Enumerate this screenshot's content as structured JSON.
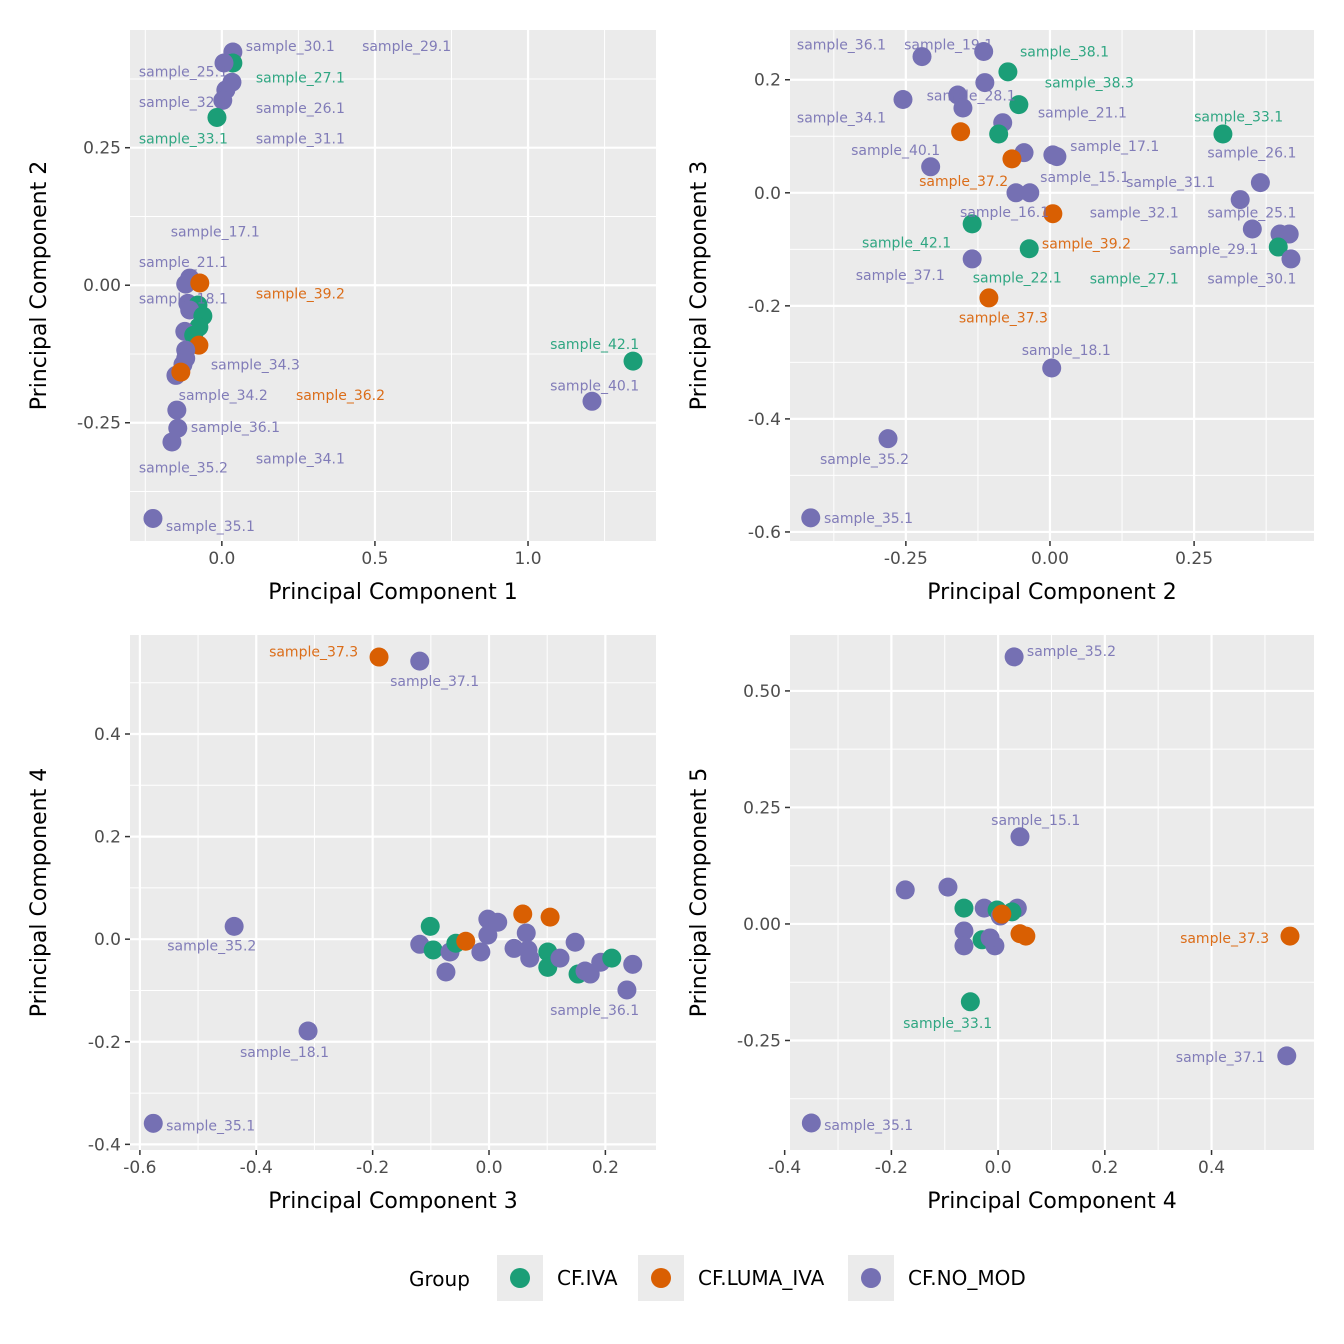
{
  "colors": {
    "CF.IVA": "#1b9e77",
    "CF.LUMA_IVA": "#d95f02",
    "CF.NO_MOD": "#7570b3",
    "panel_bg": "#ebebeb",
    "grid": "#ffffff"
  },
  "legend": {
    "title": "Group",
    "placement": "bottom",
    "entries": [
      "CF.IVA",
      "CF.LUMA_IVA",
      "CF.NO_MOD"
    ]
  },
  "chart_data": [
    {
      "type": "scatter",
      "xlabel": "Principal Component 1",
      "ylabel": "Principal Component 2",
      "xlim": [
        -0.3,
        1.418
      ],
      "ylim": [
        -0.465,
        0.464
      ],
      "xticks": [
        0.0,
        0.5,
        1.0
      ],
      "xtick_labels": [
        "0.0",
        "0.5",
        "1.0"
      ],
      "yticks": [
        -0.25,
        0.0,
        0.25
      ],
      "ytick_labels": [
        "-0.25",
        "0.00",
        "0.25"
      ],
      "grid": true,
      "points": [
        [
          0.036,
          0.424,
          "CF.NO_MOD"
        ],
        [
          0.036,
          0.404,
          "CF.IVA"
        ],
        [
          0.007,
          0.404,
          "CF.NO_MOD"
        ],
        [
          0.033,
          0.369,
          "CF.NO_MOD"
        ],
        [
          0.013,
          0.355,
          "CF.NO_MOD"
        ],
        [
          0.003,
          0.336,
          "CF.NO_MOD"
        ],
        [
          -0.016,
          0.305,
          "CF.IVA"
        ],
        [
          -0.105,
          0.013,
          "CF.NO_MOD"
        ],
        [
          -0.118,
          0.002,
          "CF.NO_MOD"
        ],
        [
          -0.072,
          0.004,
          "CF.LUMA_IVA"
        ],
        [
          -0.111,
          -0.033,
          "CF.NO_MOD"
        ],
        [
          -0.078,
          -0.036,
          "CF.IVA"
        ],
        [
          -0.105,
          -0.045,
          "CF.NO_MOD"
        ],
        [
          -0.062,
          -0.056,
          "CF.IVA"
        ],
        [
          -0.075,
          -0.076,
          "CF.IVA"
        ],
        [
          -0.121,
          -0.084,
          "CF.NO_MOD"
        ],
        [
          -0.092,
          -0.091,
          "CF.IVA"
        ],
        [
          -0.075,
          -0.109,
          "CF.LUMA_IVA"
        ],
        [
          -0.118,
          -0.118,
          "CF.NO_MOD"
        ],
        [
          -0.118,
          -0.133,
          "CF.NO_MOD"
        ],
        [
          -0.127,
          -0.144,
          "CF.NO_MOD"
        ],
        [
          -0.15,
          -0.164,
          "CF.NO_MOD"
        ],
        [
          -0.134,
          -0.158,
          "CF.LUMA_IVA"
        ],
        [
          -0.147,
          -0.227,
          "CF.NO_MOD"
        ],
        [
          -0.144,
          -0.26,
          "CF.NO_MOD"
        ],
        [
          -0.163,
          -0.285,
          "CF.NO_MOD"
        ],
        [
          -0.225,
          -0.424,
          "CF.NO_MOD"
        ],
        [
          1.343,
          -0.138,
          "CF.IVA"
        ],
        [
          1.209,
          -0.211,
          "CF.NO_MOD"
        ]
      ],
      "labels": [
        [
          "sample_30.1",
          0.078,
          0.435,
          "CF.NO_MOD"
        ],
        [
          "sample_29.1",
          0.458,
          0.435,
          "CF.NO_MOD"
        ],
        [
          "sample_25.1",
          -0.271,
          0.389,
          "CF.NO_MOD"
        ],
        [
          "sample_27.1",
          0.111,
          0.378,
          "CF.IVA"
        ],
        [
          "sample_32.1",
          -0.271,
          0.333,
          "CF.NO_MOD"
        ],
        [
          "sample_26.1",
          0.111,
          0.322,
          "CF.NO_MOD"
        ],
        [
          "sample_33.1",
          -0.271,
          0.267,
          "CF.IVA"
        ],
        [
          "sample_31.1",
          0.111,
          0.267,
          "CF.NO_MOD"
        ],
        [
          "sample_17.1",
          -0.167,
          0.098,
          "CF.NO_MOD"
        ],
        [
          "sample_21.1",
          -0.271,
          0.042,
          "CF.NO_MOD"
        ],
        [
          "sample_39.2",
          0.111,
          -0.015,
          "CF.LUMA_IVA"
        ],
        [
          "sample_18.1",
          -0.271,
          -0.024,
          "CF.NO_MOD"
        ],
        [
          "sample_34.3",
          -0.036,
          -0.144,
          "CF.NO_MOD"
        ],
        [
          "sample_34.2",
          -0.141,
          -0.2,
          "CF.NO_MOD"
        ],
        [
          "sample_36.2",
          0.242,
          -0.2,
          "CF.LUMA_IVA"
        ],
        [
          "sample_36.1",
          -0.101,
          -0.258,
          "CF.NO_MOD"
        ],
        [
          "sample_34.1",
          0.111,
          -0.315,
          "CF.NO_MOD"
        ],
        [
          "sample_35.2",
          -0.271,
          -0.331,
          "CF.NO_MOD"
        ],
        [
          "sample_35.1",
          -0.183,
          -0.438,
          "CF.NO_MOD"
        ],
        [
          "sample_42.1",
          1.072,
          -0.107,
          "CF.IVA"
        ],
        [
          "sample_40.1",
          1.072,
          -0.182,
          "CF.NO_MOD"
        ]
      ]
    },
    {
      "type": "scatter",
      "xlabel": "Principal Component 2",
      "ylabel": "Principal Component 3",
      "xlim": [
        -0.451,
        0.458
      ],
      "ylim": [
        -0.616,
        0.288
      ],
      "xticks": [
        -0.25,
        0.0,
        0.25
      ],
      "xtick_labels": [
        "-0.25",
        "0.00",
        "0.25"
      ],
      "yticks": [
        -0.6,
        -0.4,
        -0.2,
        0.0,
        0.2
      ],
      "ytick_labels": [
        "-0.6",
        "-0.4",
        "-0.2",
        "0.0",
        "0.2"
      ],
      "grid": true,
      "points": [
        [
          -0.222,
          0.241,
          "CF.NO_MOD"
        ],
        [
          -0.115,
          0.25,
          "CF.NO_MOD"
        ],
        [
          -0.073,
          0.214,
          "CF.IVA"
        ],
        [
          -0.113,
          0.195,
          "CF.NO_MOD"
        ],
        [
          -0.255,
          0.165,
          "CF.NO_MOD"
        ],
        [
          -0.16,
          0.173,
          "CF.NO_MOD"
        ],
        [
          -0.151,
          0.15,
          "CF.NO_MOD"
        ],
        [
          -0.054,
          0.156,
          "CF.IVA"
        ],
        [
          -0.082,
          0.124,
          "CF.NO_MOD"
        ],
        [
          -0.155,
          0.108,
          "CF.LUMA_IVA"
        ],
        [
          -0.089,
          0.104,
          "CF.IVA"
        ],
        [
          -0.045,
          0.071,
          "CF.NO_MOD"
        ],
        [
          -0.066,
          0.06,
          "CF.LUMA_IVA"
        ],
        [
          -0.207,
          0.046,
          "CF.NO_MOD"
        ],
        [
          0.005,
          0.067,
          "CF.NO_MOD"
        ],
        [
          0.012,
          0.064,
          "CF.NO_MOD"
        ],
        [
          -0.059,
          0.0,
          "CF.NO_MOD"
        ],
        [
          -0.035,
          0.0,
          "CF.NO_MOD"
        ],
        [
          0.005,
          -0.037,
          "CF.LUMA_IVA"
        ],
        [
          -0.135,
          -0.055,
          "CF.IVA"
        ],
        [
          -0.036,
          -0.099,
          "CF.IVA"
        ],
        [
          -0.135,
          -0.117,
          "CF.NO_MOD"
        ],
        [
          -0.106,
          -0.186,
          "CF.LUMA_IVA"
        ],
        [
          0.003,
          -0.31,
          "CF.NO_MOD"
        ],
        [
          -0.281,
          -0.435,
          "CF.NO_MOD"
        ],
        [
          -0.415,
          -0.575,
          "CF.NO_MOD"
        ],
        [
          0.3,
          0.104,
          "CF.IVA"
        ],
        [
          0.365,
          0.018,
          "CF.NO_MOD"
        ],
        [
          0.33,
          -0.012,
          "CF.NO_MOD"
        ],
        [
          0.351,
          -0.064,
          "CF.NO_MOD"
        ],
        [
          0.399,
          -0.073,
          "CF.NO_MOD"
        ],
        [
          0.415,
          -0.073,
          "CF.NO_MOD"
        ],
        [
          0.396,
          -0.096,
          "CF.IVA"
        ],
        [
          0.418,
          -0.117,
          "CF.NO_MOD"
        ]
      ],
      "labels": [
        [
          "sample_36.1",
          -0.439,
          0.262,
          "CF.NO_MOD"
        ],
        [
          "sample_19.1",
          -0.253,
          0.262,
          "CF.NO_MOD"
        ],
        [
          "sample_38.1",
          -0.052,
          0.25,
          "CF.IVA"
        ],
        [
          "sample_38.3",
          -0.009,
          0.195,
          "CF.IVA"
        ],
        [
          "sample_28.1",
          -0.214,
          0.172,
          "CF.NO_MOD"
        ],
        [
          "sample_34.1",
          -0.439,
          0.133,
          "CF.NO_MOD"
        ],
        [
          "sample_21.1",
          -0.021,
          0.142,
          "CF.NO_MOD"
        ],
        [
          "sample_17.1",
          0.035,
          0.083,
          "CF.NO_MOD"
        ],
        [
          "sample_40.1",
          -0.345,
          0.076,
          "CF.NO_MOD"
        ],
        [
          "sample_37.2",
          -0.227,
          0.021,
          "CF.LUMA_IVA"
        ],
        [
          "sample_15.1",
          -0.017,
          0.028,
          "CF.NO_MOD"
        ],
        [
          "sample_16.1",
          -0.156,
          -0.034,
          "CF.NO_MOD"
        ],
        [
          "sample_42.1",
          -0.326,
          -0.088,
          "CF.IVA"
        ],
        [
          "sample_39.2",
          -0.014,
          -0.09,
          "CF.LUMA_IVA"
        ],
        [
          "sample_37.1",
          -0.337,
          -0.145,
          "CF.NO_MOD"
        ],
        [
          "sample_22.1",
          -0.134,
          -0.15,
          "CF.IVA"
        ],
        [
          "sample_37.3",
          -0.158,
          -0.221,
          "CF.LUMA_IVA"
        ],
        [
          "sample_18.1",
          -0.049,
          -0.278,
          "CF.NO_MOD"
        ],
        [
          "sample_35.2",
          -0.399,
          -0.471,
          "CF.NO_MOD"
        ],
        [
          "sample_35.1",
          -0.392,
          -0.575,
          "CF.NO_MOD"
        ],
        [
          "sample_33.1",
          0.25,
          0.135,
          "CF.IVA"
        ],
        [
          "sample_26.1",
          0.273,
          0.071,
          "CF.NO_MOD"
        ],
        [
          "sample_31.1",
          0.132,
          0.019,
          "CF.NO_MOD"
        ],
        [
          "sample_32.1",
          0.069,
          -0.035,
          "CF.NO_MOD"
        ],
        [
          "sample_25.1",
          0.273,
          -0.035,
          "CF.NO_MOD"
        ],
        [
          "sample_29.1",
          0.207,
          -0.099,
          "CF.NO_MOD"
        ],
        [
          "sample_27.1",
          0.069,
          -0.152,
          "CF.IVA"
        ],
        [
          "sample_30.1",
          0.273,
          -0.152,
          "CF.NO_MOD"
        ]
      ]
    },
    {
      "type": "scatter",
      "xlabel": "Principal Component 3",
      "ylabel": "Principal Component 4",
      "xlim": [
        -0.617,
        0.287
      ],
      "ylim": [
        -0.411,
        0.593
      ],
      "xticks": [
        -0.6,
        -0.4,
        -0.2,
        0.0,
        0.2
      ],
      "xtick_labels": [
        "-0.6",
        "-0.4",
        "-0.2",
        "0.0",
        "0.2"
      ],
      "yticks": [
        -0.4,
        -0.2,
        0.0,
        0.2,
        0.4
      ],
      "ytick_labels": [
        "-0.4",
        "-0.2",
        "0.0",
        "0.2",
        "0.4"
      ],
      "grid": true,
      "points": [
        [
          -0.189,
          0.55,
          "CF.LUMA_IVA"
        ],
        [
          -0.119,
          0.542,
          "CF.NO_MOD"
        ],
        [
          -0.438,
          0.025,
          "CF.NO_MOD"
        ],
        [
          -0.311,
          -0.179,
          "CF.NO_MOD"
        ],
        [
          -0.577,
          -0.359,
          "CF.NO_MOD"
        ],
        [
          -0.119,
          -0.01,
          "CF.NO_MOD"
        ],
        [
          -0.101,
          0.025,
          "CF.IVA"
        ],
        [
          -0.096,
          -0.021,
          "CF.IVA"
        ],
        [
          -0.074,
          -0.064,
          "CF.NO_MOD"
        ],
        [
          -0.067,
          -0.025,
          "CF.NO_MOD"
        ],
        [
          -0.057,
          -0.008,
          "CF.IVA"
        ],
        [
          -0.04,
          -0.004,
          "CF.LUMA_IVA"
        ],
        [
          -0.014,
          -0.025,
          "CF.NO_MOD"
        ],
        [
          -0.002,
          0.039,
          "CF.NO_MOD"
        ],
        [
          -0.002,
          0.008,
          "CF.NO_MOD"
        ],
        [
          0.015,
          0.033,
          "CF.NO_MOD"
        ],
        [
          0.043,
          -0.018,
          "CF.NO_MOD"
        ],
        [
          0.058,
          0.049,
          "CF.LUMA_IVA"
        ],
        [
          0.064,
          0.012,
          "CF.NO_MOD"
        ],
        [
          0.067,
          -0.021,
          "CF.NO_MOD"
        ],
        [
          0.07,
          -0.037,
          "CF.NO_MOD"
        ],
        [
          0.105,
          0.043,
          "CF.LUMA_IVA"
        ],
        [
          0.101,
          -0.025,
          "CF.IVA"
        ],
        [
          0.101,
          -0.055,
          "CF.IVA"
        ],
        [
          0.122,
          -0.037,
          "CF.NO_MOD"
        ],
        [
          0.148,
          -0.006,
          "CF.NO_MOD"
        ],
        [
          0.153,
          -0.068,
          "CF.IVA"
        ],
        [
          0.165,
          -0.062,
          "CF.NO_MOD"
        ],
        [
          0.174,
          -0.068,
          "CF.NO_MOD"
        ],
        [
          0.192,
          -0.045,
          "CF.NO_MOD"
        ],
        [
          0.211,
          -0.037,
          "CF.IVA"
        ],
        [
          0.247,
          -0.049,
          "CF.NO_MOD"
        ],
        [
          0.237,
          -0.099,
          "CF.NO_MOD"
        ]
      ],
      "labels": [
        [
          "sample_37.3",
          -0.378,
          0.561,
          "CF.LUMA_IVA"
        ],
        [
          "sample_37.1",
          -0.17,
          0.503,
          "CF.NO_MOD"
        ],
        [
          "sample_35.2",
          -0.553,
          -0.012,
          "CF.NO_MOD"
        ],
        [
          "sample_18.1",
          -0.428,
          -0.22,
          "CF.NO_MOD"
        ],
        [
          "sample_35.1",
          -0.555,
          -0.363,
          "CF.NO_MOD"
        ],
        [
          "sample_36.1",
          0.105,
          -0.138,
          "CF.NO_MOD"
        ]
      ]
    },
    {
      "type": "scatter",
      "xlabel": "Principal Component 4",
      "ylabel": "Principal Component 5",
      "xlim": [
        -0.39,
        0.592
      ],
      "ylim": [
        -0.485,
        0.62
      ],
      "xticks": [
        -0.4,
        -0.2,
        0.0,
        0.2,
        0.4
      ],
      "xtick_labels": [
        "-0.4",
        "-0.2",
        "0.0",
        "0.2",
        "0.4"
      ],
      "yticks": [
        -0.25,
        0.0,
        0.25,
        0.5
      ],
      "ytick_labels": [
        "-0.25",
        "0.00",
        "0.25",
        "0.50"
      ],
      "grid": true,
      "points": [
        [
          0.03,
          0.573,
          "CF.NO_MOD"
        ],
        [
          0.041,
          0.187,
          "CF.NO_MOD"
        ],
        [
          -0.174,
          0.073,
          "CF.NO_MOD"
        ],
        [
          -0.094,
          0.079,
          "CF.NO_MOD"
        ],
        [
          -0.064,
          0.034,
          "CF.IVA"
        ],
        [
          -0.026,
          0.034,
          "CF.NO_MOD"
        ],
        [
          0.036,
          0.034,
          "CF.NO_MOD"
        ],
        [
          -0.002,
          0.03,
          "CF.IVA"
        ],
        [
          -0.064,
          -0.015,
          "CF.NO_MOD"
        ],
        [
          -0.03,
          -0.034,
          "CF.IVA"
        ],
        [
          -0.064,
          -0.047,
          "CF.NO_MOD"
        ],
        [
          -0.006,
          -0.047,
          "CF.NO_MOD"
        ],
        [
          -0.015,
          -0.03,
          "CF.NO_MOD"
        ],
        [
          0.004,
          0.017,
          "CF.NO_MOD"
        ],
        [
          0.026,
          0.026,
          "CF.IVA"
        ],
        [
          0.007,
          0.021,
          "CF.LUMA_IVA"
        ],
        [
          0.041,
          -0.021,
          "CF.LUMA_IVA"
        ],
        [
          0.052,
          -0.026,
          "CF.LUMA_IVA"
        ],
        [
          -0.052,
          -0.167,
          "CF.IVA"
        ],
        [
          0.547,
          -0.026,
          "CF.LUMA_IVA"
        ],
        [
          0.541,
          -0.283,
          "CF.NO_MOD"
        ],
        [
          -0.35,
          -0.427,
          "CF.NO_MOD"
        ]
      ],
      "labels": [
        [
          "sample_35.2",
          0.054,
          0.586,
          "CF.NO_MOD"
        ],
        [
          "sample_15.1",
          -0.013,
          0.223,
          "CF.NO_MOD"
        ],
        [
          "sample_33.1",
          -0.178,
          -0.212,
          "CF.IVA"
        ],
        [
          "sample_37.3",
          0.341,
          -0.03,
          "CF.LUMA_IVA"
        ],
        [
          "sample_37.1",
          0.333,
          -0.285,
          "CF.NO_MOD"
        ],
        [
          "sample_35.1",
          -0.326,
          -0.431,
          "CF.NO_MOD"
        ]
      ]
    }
  ]
}
